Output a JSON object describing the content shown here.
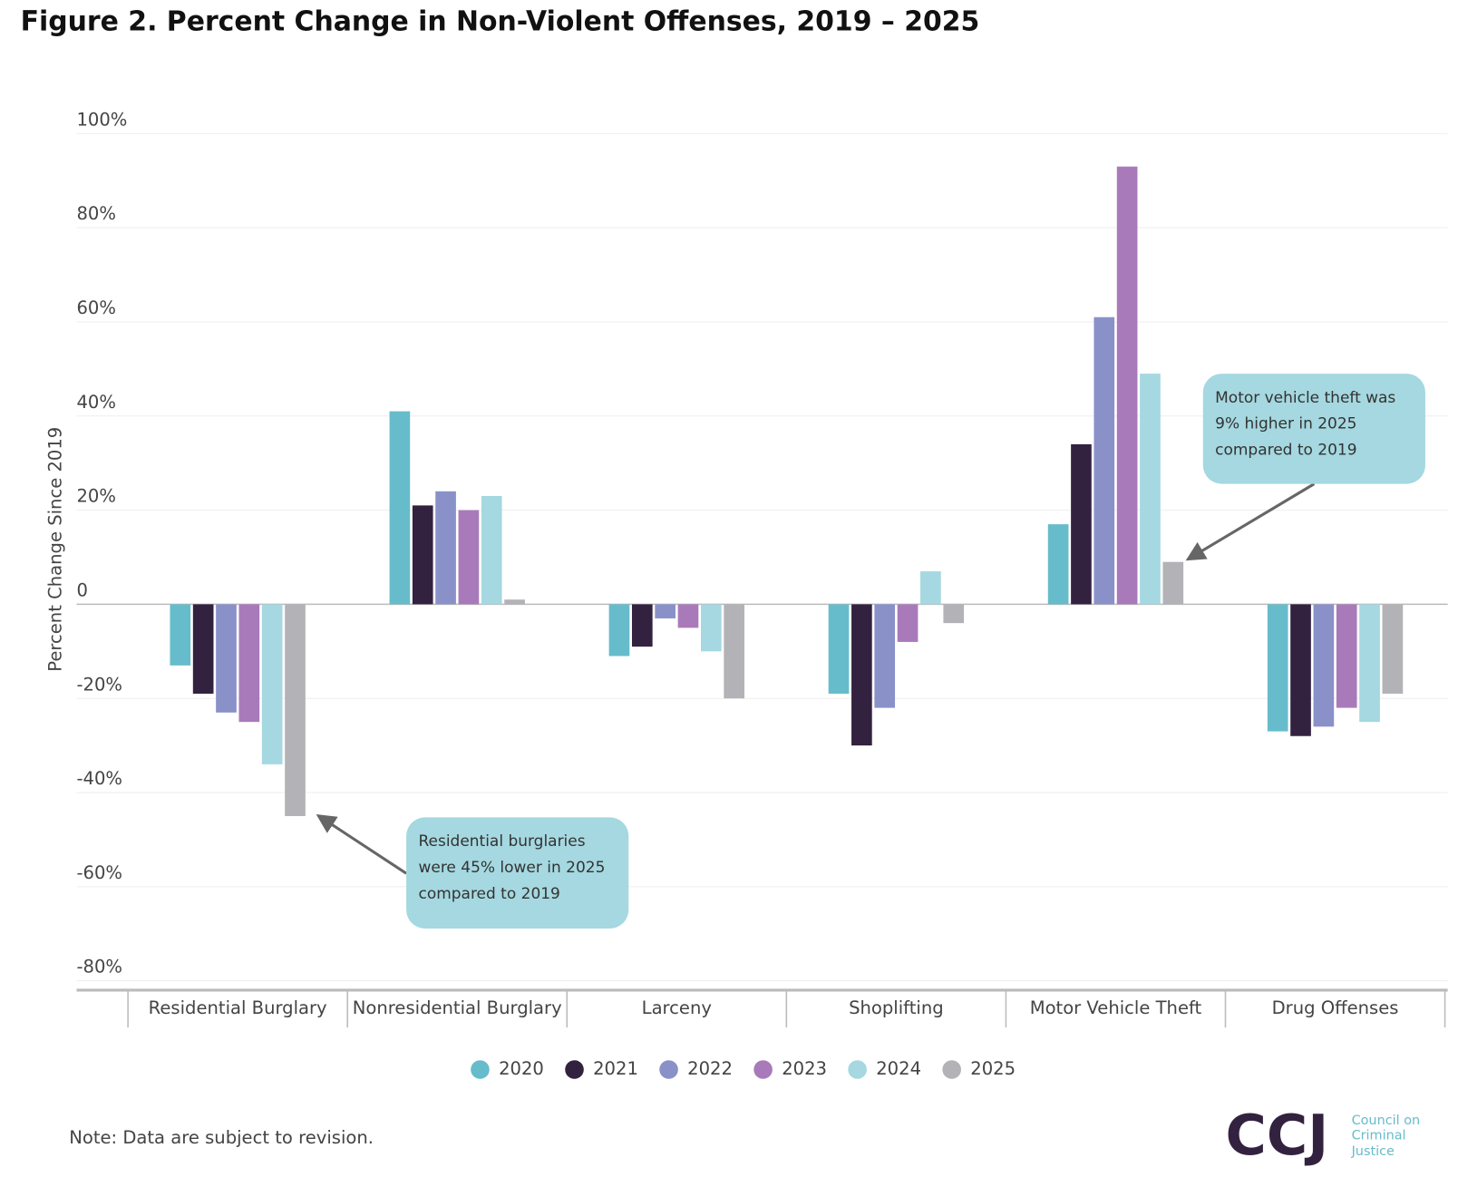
{
  "chart_data": {
    "type": "bar",
    "title": "Figure 2. Percent Change in Non-Violent Offenses, 2019 – 2025",
    "y_label": "Percent Change Since 2019",
    "categories": [
      "Residential Burglary",
      "Nonresidential Burglary",
      "Larceny",
      "Shoplifting",
      "Motor Vehicle Theft",
      "Drug Offenses"
    ],
    "series": [
      {
        "name": "2020",
        "color": "#67bccb",
        "values": [
          -13,
          41,
          -11,
          -19,
          17,
          -27
        ]
      },
      {
        "name": "2021",
        "color": "#33223f",
        "values": [
          -19,
          21,
          -9,
          -30,
          34,
          -28
        ]
      },
      {
        "name": "2022",
        "color": "#8a91c9",
        "values": [
          -23,
          24,
          -3,
          -22,
          61,
          -26
        ]
      },
      {
        "name": "2023",
        "color": "#a97ab9",
        "values": [
          -25,
          20,
          -5,
          -8,
          93,
          -22
        ]
      },
      {
        "name": "2024",
        "color": "#a5d8e0",
        "values": [
          -34,
          23,
          -10,
          7,
          49,
          -25
        ]
      },
      {
        "name": "2025",
        "color": "#b2b2b7",
        "values": [
          -45,
          1,
          -20,
          -4,
          9,
          -19
        ]
      }
    ],
    "ylim": [
      -80,
      100
    ],
    "yticks": [
      {
        "value": -80,
        "label": "-80%"
      },
      {
        "value": -60,
        "label": "-60%"
      },
      {
        "value": -40,
        "label": "-40%"
      },
      {
        "value": -20,
        "label": "-20%"
      },
      0,
      {
        "value": 20,
        "label": "20%"
      },
      {
        "value": 40,
        "label": "40%"
      },
      {
        "value": 60,
        "label": "60%"
      },
      {
        "value": 80,
        "label": "80%"
      },
      {
        "value": 100,
        "label": "100%"
      }
    ],
    "grid": true,
    "legend": "bottom",
    "annotations": [
      {
        "lines": [
          "Residential burglaries",
          "were 45% lower in 2025",
          "compared to 2019"
        ]
      },
      {
        "lines": [
          "Motor vehicle theft was",
          "9% higher in 2025",
          "compared to 2019"
        ]
      }
    ],
    "note": "Note: Data are subject to revision."
  },
  "logo": {
    "mark": "CCJ",
    "lines": [
      "Council on",
      "Criminal",
      "Justice"
    ]
  }
}
